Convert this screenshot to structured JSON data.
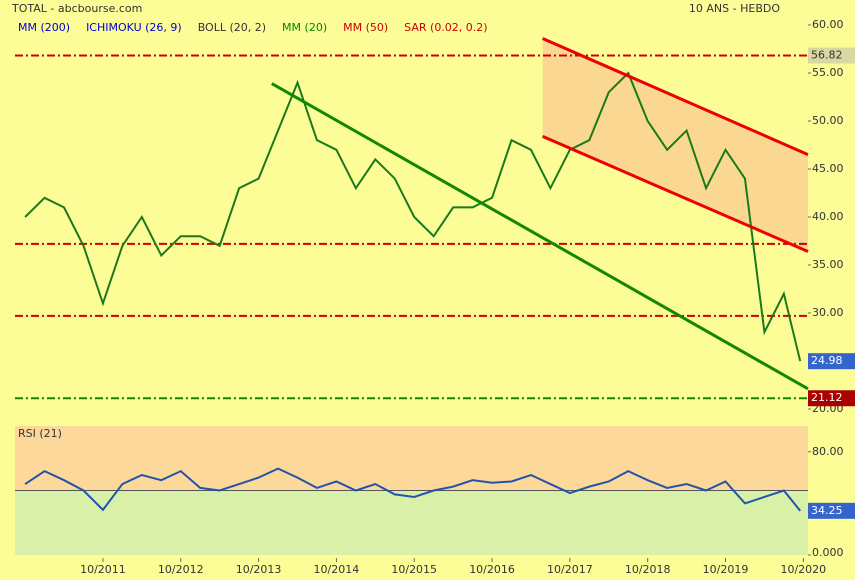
{
  "chart_data": [
    {
      "type": "line",
      "title": "TOTAL - abcbourse.com",
      "subtitle": "10 ANS - HEBDO",
      "indicators": [
        {
          "name": "MM (200)",
          "color": "#0000cc"
        },
        {
          "name": "ICHIMOKU (26, 9)",
          "color": "#0000cc"
        },
        {
          "name": "BOLL (20, 2)",
          "color": "#333333"
        },
        {
          "name": "MM (20)",
          "color": "#008800"
        },
        {
          "name": "MM (50)",
          "color": "#cc0000"
        },
        {
          "name": "SAR (0.02, 0.2)",
          "color": "#cc0000"
        }
      ],
      "x": [
        2010.75,
        2011.0,
        2011.25,
        2011.5,
        2011.75,
        2012.0,
        2012.25,
        2012.5,
        2012.75,
        2013.0,
        2013.25,
        2013.5,
        2013.75,
        2014.0,
        2014.25,
        2014.5,
        2014.75,
        2015.0,
        2015.25,
        2015.5,
        2015.75,
        2016.0,
        2016.25,
        2016.5,
        2016.75,
        2017.0,
        2017.25,
        2017.5,
        2017.75,
        2018.0,
        2018.25,
        2018.5,
        2018.75,
        2019.0,
        2019.25,
        2019.5,
        2019.75,
        2020.0,
        2020.25,
        2020.5,
        2020.71
      ],
      "series": [
        {
          "name": "TOTAL",
          "color": "#1a7a1a",
          "values": [
            40,
            42,
            41,
            37,
            31,
            37,
            40,
            36,
            38,
            38,
            37,
            43,
            44,
            49,
            54,
            48,
            47,
            43,
            46,
            44,
            40,
            38,
            41,
            41,
            42,
            48,
            47,
            43,
            47,
            48,
            53,
            55,
            50,
            47,
            49,
            43,
            47,
            44,
            28,
            32,
            24.98
          ]
        }
      ],
      "levels": [
        {
          "value": 56.82,
          "color": "#cc0000"
        },
        {
          "value": 37.2,
          "color": "#cc0000"
        },
        {
          "value": 29.7,
          "color": "#cc0000"
        },
        {
          "value": 21.12,
          "color": "#118800"
        }
      ],
      "price_labels": [
        {
          "value": 56.82,
          "color": "#d8d8a0",
          "text_color": "#333333"
        },
        {
          "value": 24.98,
          "color": "#3366cc",
          "text_color": "#ffffff"
        },
        {
          "value": 21.12,
          "color": "#aa0000",
          "text_color": "#ffffff"
        }
      ],
      "trendlines": [
        {
          "x": [
            2013.92,
            2020.81
          ],
          "y": [
            53.9,
            22.1
          ],
          "color": "#118800"
        },
        {
          "x": [
            2017.4,
            2020.81
          ],
          "y": [
            58.6,
            46.5
          ],
          "color": "#ee0000"
        },
        {
          "x": [
            2017.4,
            2020.81
          ],
          "y": [
            48.4,
            36.4
          ],
          "color": "#ee0000"
        }
      ],
      "channel_color": "#f8c890",
      "xlim": [
        2010.62,
        2020.81
      ],
      "xticks": [
        {
          "value": 2011.75,
          "label": "10/2011"
        },
        {
          "value": 2012.75,
          "label": "10/2012"
        },
        {
          "value": 2013.75,
          "label": "10/2013"
        },
        {
          "value": 2014.75,
          "label": "10/2014"
        },
        {
          "value": 2015.75,
          "label": "10/2015"
        },
        {
          "value": 2016.75,
          "label": "10/2016"
        },
        {
          "value": 2017.75,
          "label": "10/2017"
        },
        {
          "value": 2018.75,
          "label": "10/2018"
        },
        {
          "value": 2019.75,
          "label": "10/2019"
        },
        {
          "value": 2020.75,
          "label": "10/2020"
        }
      ],
      "ylim": [
        20,
        60
      ],
      "yticks": [
        {
          "value": 20,
          "label": "20.00"
        },
        {
          "value": 25,
          "label": "25.00"
        },
        {
          "value": 30,
          "label": "30.00"
        },
        {
          "value": 35,
          "label": "35.00"
        },
        {
          "value": 40,
          "label": "40.00"
        },
        {
          "value": 45,
          "label": "45.00"
        },
        {
          "value": 50,
          "label": "50.00"
        },
        {
          "value": 55,
          "label": "55.00"
        },
        {
          "value": 60,
          "label": "60.00"
        }
      ]
    },
    {
      "type": "line",
      "title": "RSI (21)",
      "x": [
        2010.75,
        2011.0,
        2011.25,
        2011.5,
        2011.75,
        2012.0,
        2012.25,
        2012.5,
        2012.75,
        2013.0,
        2013.25,
        2013.5,
        2013.75,
        2014.0,
        2014.25,
        2014.5,
        2014.75,
        2015.0,
        2015.25,
        2015.5,
        2015.75,
        2016.0,
        2016.25,
        2016.5,
        2016.75,
        2017.0,
        2017.25,
        2017.5,
        2017.75,
        2018.0,
        2018.25,
        2018.5,
        2018.75,
        2019.0,
        2019.25,
        2019.5,
        2019.75,
        2020.0,
        2020.25,
        2020.5,
        2020.71
      ],
      "series": [
        {
          "name": "RSI (21)",
          "color": "#2255aa",
          "values": [
            55,
            65,
            58,
            50,
            35,
            55,
            62,
            58,
            65,
            52,
            50,
            55,
            60,
            67,
            60,
            52,
            57,
            50,
            55,
            47,
            45,
            50,
            53,
            58,
            56,
            57,
            62,
            55,
            48,
            53,
            57,
            65,
            58,
            52,
            55,
            50,
            57,
            40,
            45,
            50,
            34.25
          ]
        }
      ],
      "midline": 50,
      "upper_color": "#fcd89a",
      "lower_color": "#d8f0a8",
      "last_label": {
        "value": 34.25,
        "color": "#3366cc"
      },
      "xlim": [
        2010.62,
        2020.81
      ],
      "ylim": [
        0,
        100
      ],
      "yticks": [
        {
          "value": 80,
          "label": "80.00"
        },
        {
          "value": 0,
          "label": "0.000"
        }
      ]
    }
  ]
}
